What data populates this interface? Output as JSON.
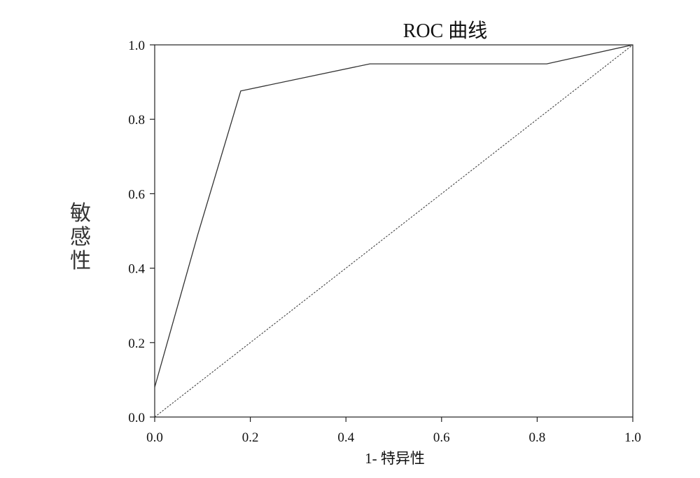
{
  "chart_data": {
    "type": "line",
    "title": "ROC 曲线",
    "xlabel": "1- 特异性",
    "ylabel": "敏感性",
    "xlim": [
      0,
      1
    ],
    "ylim": [
      0,
      1
    ],
    "x_ticks": [
      "0.0",
      "0.2",
      "0.4",
      "0.6",
      "0.8",
      "1.0"
    ],
    "y_ticks": [
      "0.0",
      "0.2",
      "0.4",
      "0.6",
      "0.8",
      "1.0"
    ],
    "grid": false,
    "series": [
      {
        "style": "solid",
        "x": [
          0.0,
          0.09,
          0.18,
          0.45,
          0.82,
          1.0
        ],
        "y": [
          0.08,
          0.49,
          0.876,
          0.949,
          0.949,
          1.0
        ]
      },
      {
        "style": "dotted",
        "x": [
          0.0,
          1.0
        ],
        "y": [
          0.0,
          1.0
        ]
      }
    ]
  }
}
